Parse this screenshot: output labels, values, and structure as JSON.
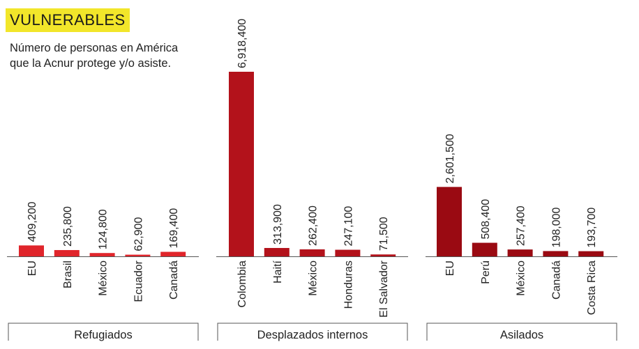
{
  "header": {
    "title": "VULNERABLES",
    "subtitle_line1": "Número de personas en América",
    "subtitle_line2": "que la Acnur protege y/o asiste."
  },
  "colors": {
    "refugiados": "#e0252b",
    "desplazados": "#b3121b",
    "asilados": "#9a0a12",
    "badge": "#f2e62a",
    "axis": "#555555"
  },
  "chart_data": {
    "type": "bar",
    "title": "VULNERABLES",
    "subtitle": "Número de personas en América que la Acnur protege y/o asiste.",
    "ylim": [
      0,
      6918400
    ],
    "grid": false,
    "groups": [
      {
        "name": "Refugiados",
        "color": "#e0252b",
        "categories": [
          "EU",
          "Brasil",
          "México",
          "Ecuador",
          "Canadá"
        ],
        "values": [
          409200,
          235800,
          124800,
          62900,
          169400
        ],
        "value_labels": [
          "409,200",
          "235,800",
          "124,800",
          "62,900",
          "169,400"
        ]
      },
      {
        "name": "Desplazados internos",
        "color": "#b3121b",
        "categories": [
          "Colombia",
          "Haití",
          "México",
          "Honduras",
          "El Salvador"
        ],
        "values": [
          6918400,
          313900,
          262400,
          247100,
          71500
        ],
        "value_labels": [
          "6,918,400",
          "313,900",
          "262,400",
          "247,100",
          "71,500"
        ]
      },
      {
        "name": "Asilados",
        "color": "#9a0a12",
        "categories": [
          "EU",
          "Perú",
          "México",
          "Canadá",
          "Costa Rica"
        ],
        "values": [
          2601500,
          508400,
          257400,
          198000,
          193700
        ],
        "value_labels": [
          "2,601,500",
          "508,400",
          "257,400",
          "198,000",
          "193,700"
        ]
      }
    ]
  }
}
